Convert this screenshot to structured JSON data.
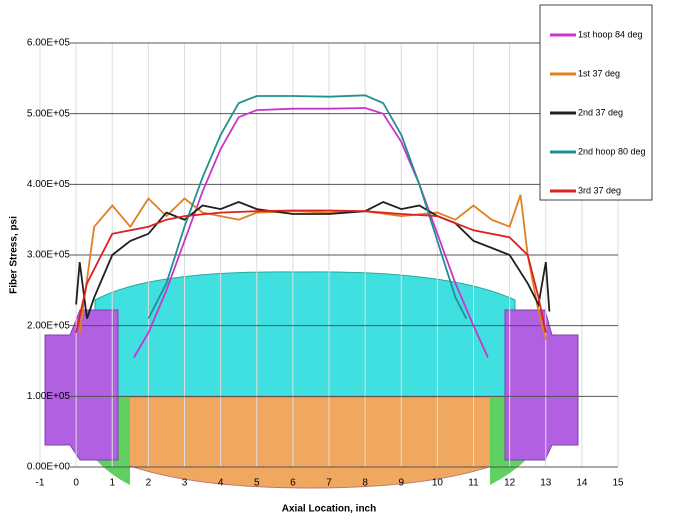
{
  "chart_data": {
    "type": "line",
    "xlabel": "Axial Location, inch",
    "ylabel": "Fiber Stress, psi",
    "xlim": [
      -1,
      15
    ],
    "xticks": [
      -1,
      0,
      1,
      2,
      3,
      4,
      5,
      6,
      7,
      8,
      9,
      10,
      11,
      12,
      13,
      14,
      15
    ],
    "ylim": [
      0,
      600000
    ],
    "yticks": [
      {
        "value": 0,
        "label": "0.00E+00"
      },
      {
        "value": 100000,
        "label": "1.00E+05"
      },
      {
        "value": 200000,
        "label": "2.00E+05"
      },
      {
        "value": 300000,
        "label": "3.00E+05"
      },
      {
        "value": 400000,
        "label": "4.00E+05"
      },
      {
        "value": 500000,
        "label": "5.00E+05"
      },
      {
        "value": 600000,
        "label": "6.00E+05"
      }
    ],
    "grid": true,
    "series": [
      {
        "name": "1st hoop 84 deg",
        "color": "#cc33cc",
        "x": [
          1.6,
          2,
          2.5,
          3,
          3.5,
          4,
          4.5,
          5,
          6,
          7,
          8,
          8.5,
          9,
          9.5,
          10,
          10.5,
          11,
          11.4
        ],
        "values": [
          155000,
          190000,
          250000,
          320000,
          390000,
          450000,
          495000,
          505000,
          507000,
          507000,
          508000,
          500000,
          460000,
          400000,
          330000,
          260000,
          200000,
          155000
        ]
      },
      {
        "name": "1st 37 deg",
        "color": "#e08020",
        "x": [
          0.1,
          0.5,
          1,
          1.5,
          2,
          2.5,
          3,
          3.5,
          4,
          4.5,
          5,
          6,
          7,
          8,
          9,
          10,
          10.5,
          11,
          11.5,
          12,
          12.3,
          12.5,
          12.8,
          13
        ],
        "values": [
          190000,
          340000,
          370000,
          340000,
          380000,
          355000,
          380000,
          360000,
          355000,
          350000,
          360000,
          362000,
          360000,
          362000,
          355000,
          360000,
          350000,
          370000,
          350000,
          340000,
          385000,
          300000,
          220000,
          180000
        ]
      },
      {
        "name": "2nd 37 deg",
        "color": "#202020",
        "x": [
          0,
          0.1,
          0.3,
          0.5,
          1,
          1.5,
          2,
          2.5,
          3,
          3.5,
          4,
          4.5,
          5,
          6,
          7,
          8,
          8.5,
          9,
          9.5,
          10,
          10.5,
          11,
          11.5,
          12,
          12.5,
          12.8,
          13,
          13.1
        ],
        "values": [
          230000,
          290000,
          210000,
          240000,
          300000,
          320000,
          330000,
          360000,
          350000,
          370000,
          365000,
          375000,
          365000,
          358000,
          358000,
          362000,
          375000,
          365000,
          370000,
          355000,
          345000,
          320000,
          310000,
          300000,
          260000,
          230000,
          290000,
          220000
        ]
      },
      {
        "name": "2nd hoop 80 deg",
        "color": "#209090",
        "x": [
          2,
          2.5,
          3,
          3.5,
          4,
          4.5,
          5,
          6,
          7,
          8,
          8.5,
          9,
          9.5,
          10,
          10.5,
          10.8
        ],
        "values": [
          210000,
          260000,
          340000,
          410000,
          470000,
          515000,
          525000,
          525000,
          524000,
          526000,
          515000,
          470000,
          400000,
          320000,
          240000,
          210000
        ]
      },
      {
        "name": "3rd 37 deg",
        "color": "#dd2020",
        "x": [
          0,
          0.3,
          0.7,
          1,
          2,
          2.5,
          3,
          4,
          5,
          6,
          7,
          8,
          9,
          10,
          10.5,
          11,
          12,
          12.5,
          12.8,
          13
        ],
        "values": [
          190000,
          260000,
          300000,
          330000,
          340000,
          350000,
          355000,
          360000,
          362000,
          363000,
          363000,
          362000,
          358000,
          355000,
          345000,
          335000,
          325000,
          300000,
          240000,
          190000
        ]
      }
    ]
  }
}
